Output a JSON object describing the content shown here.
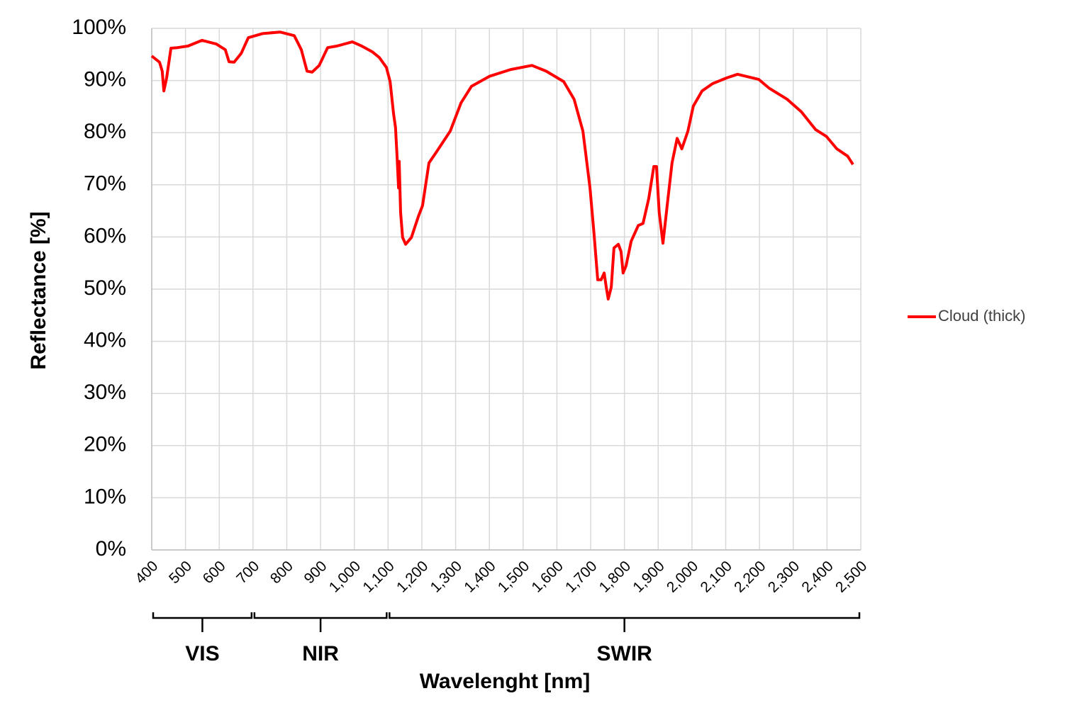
{
  "chart_data": {
    "type": "line",
    "x_label": "Wavelenght [nm]",
    "y_label": "Reflectance [%]",
    "x": [
      400,
      423,
      431,
      436,
      444,
      457,
      476,
      507,
      549,
      591,
      618,
      629,
      644,
      665,
      686,
      728,
      780,
      822,
      843,
      860,
      875,
      896,
      921,
      948,
      994,
      1022,
      1053,
      1074,
      1095,
      1106,
      1116,
      1122,
      1127,
      1131,
      1133,
      1137,
      1143,
      1152,
      1169,
      1190,
      1202,
      1221,
      1242,
      1284,
      1316,
      1347,
      1400,
      1463,
      1526,
      1568,
      1620,
      1651,
      1677,
      1685,
      1698,
      1710,
      1721,
      1731,
      1740,
      1746,
      1752,
      1761,
      1769,
      1782,
      1790,
      1796,
      1805,
      1820,
      1841,
      1855,
      1872,
      1887,
      1895,
      1903,
      1914,
      1929,
      1941,
      1956,
      1970,
      1988,
      2004,
      2030,
      2061,
      2103,
      2135,
      2198,
      2229,
      2282,
      2324,
      2366,
      2398,
      2429,
      2461,
      2477
    ],
    "series": [
      {
        "name": "Cloud (thick)",
        "color": "#ff0000",
        "values": [
          94.7,
          93.5,
          91.8,
          88,
          90.5,
          96.2,
          96.3,
          96.6,
          97.7,
          97.0,
          95.9,
          93.6,
          93.5,
          95.2,
          98.2,
          99.0,
          99.3,
          98.6,
          95.9,
          91.8,
          91.6,
          92.9,
          96.3,
          96.6,
          97.4,
          96.6,
          95.5,
          94.4,
          92.5,
          89.8,
          83.7,
          81.0,
          74.9,
          69.4,
          74.5,
          64.7,
          59.9,
          58.6,
          59.9,
          64.0,
          66.0,
          74.2,
          76.2,
          80.3,
          85.7,
          88.9,
          90.8,
          92.1,
          92.9,
          91.8,
          89.8,
          86.4,
          80.3,
          76.2,
          69.4,
          60.6,
          51.8,
          51.8,
          53.1,
          50.4,
          48.1,
          50.4,
          57.9,
          58.6,
          57.2,
          53.1,
          54.5,
          59.2,
          62.2,
          62.6,
          67.4,
          73.5,
          73.5,
          64.7,
          58.8,
          67.4,
          74.2,
          78.9,
          76.9,
          80.3,
          85.1,
          88.0,
          89.4,
          90.5,
          91.2,
          90.2,
          88.5,
          86.4,
          84.0,
          80.6,
          79.3,
          76.9,
          75.5,
          73.9
        ]
      }
    ],
    "xlim": [
      400,
      2500
    ],
    "ylim": [
      0,
      100
    ],
    "xticks": [
      400,
      500,
      600,
      700,
      800,
      900,
      {
        "value": 1000,
        "label": "1,000"
      },
      {
        "value": 1100,
        "label": "1,100"
      },
      {
        "value": 1200,
        "label": "1,200"
      },
      {
        "value": 1300,
        "label": "1,300"
      },
      {
        "value": 1400,
        "label": "1,400"
      },
      {
        "value": 1500,
        "label": "1,500"
      },
      {
        "value": 1600,
        "label": "1,600"
      },
      {
        "value": 1700,
        "label": "1,700"
      },
      {
        "value": 1800,
        "label": "1,800"
      },
      {
        "value": 1900,
        "label": "1,900"
      },
      {
        "value": 2000,
        "label": "2,000"
      },
      {
        "value": 2100,
        "label": "2,100"
      },
      {
        "value": 2200,
        "label": "2,200"
      },
      {
        "value": 2300,
        "label": "2,300"
      },
      {
        "value": 2400,
        "label": "2,400"
      },
      {
        "value": 2500,
        "label": "2,500"
      }
    ],
    "yticks": [
      {
        "value": 0,
        "label": "0%"
      },
      {
        "value": 10,
        "label": "10%"
      },
      {
        "value": 20,
        "label": "20%"
      },
      {
        "value": 30,
        "label": "30%"
      },
      {
        "value": 40,
        "label": "40%"
      },
      {
        "value": 50,
        "label": "50%"
      },
      {
        "value": 60,
        "label": "60%"
      },
      {
        "value": 70,
        "label": "70%"
      },
      {
        "value": 80,
        "label": "80%"
      },
      {
        "value": 90,
        "label": "90%"
      },
      {
        "value": 100,
        "label": "100%"
      }
    ],
    "grid": true,
    "legend": "right",
    "regions": [
      {
        "label": "VIS",
        "start": 400,
        "end": 700
      },
      {
        "label": "NIR",
        "start": 700,
        "end": 1100
      },
      {
        "label": "SWIR",
        "start": 1100,
        "end": 2500
      }
    ]
  }
}
